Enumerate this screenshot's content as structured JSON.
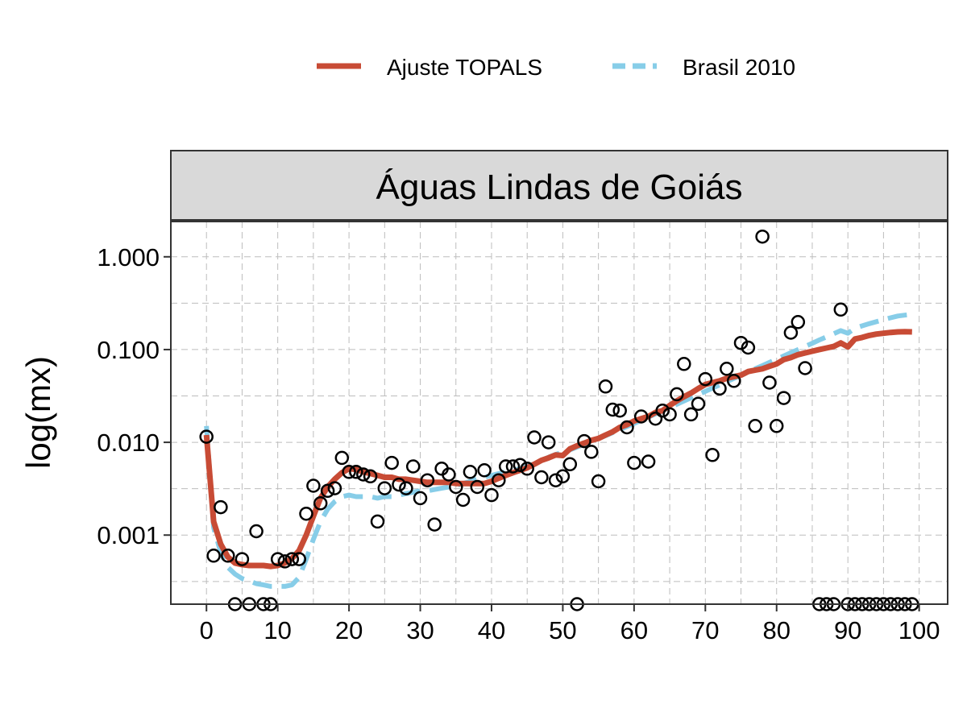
{
  "colors": {
    "fit": "#C84B35",
    "brazil": "#87CDE8",
    "points": "#000000",
    "strip_bg": "#D9D9D9",
    "panel_border": "#333333",
    "grid": "#BDBDBD"
  },
  "legend": {
    "position": "top",
    "items": [
      {
        "key": "fit",
        "label": "Ajuste TOPALS",
        "style": "solid"
      },
      {
        "key": "brazil",
        "label": "Brasil 2010",
        "style": "dashed"
      }
    ]
  },
  "chart_data": {
    "type": "line",
    "facet_title": "Águas Lindas de Goiás",
    "xlabel": "",
    "ylabel": "log(mx)",
    "y_scale": "log10",
    "xlim": [
      -5,
      104
    ],
    "ylim": [
      0.00018,
      2.4
    ],
    "grid": true,
    "x_ticks": [
      0,
      10,
      20,
      30,
      40,
      50,
      60,
      70,
      80,
      90,
      100
    ],
    "x_tick_labels": [
      "0",
      "10",
      "20",
      "30",
      "40",
      "50",
      "60",
      "70",
      "80",
      "90",
      "100"
    ],
    "y_ticks": [
      0.001,
      0.01,
      0.1,
      1
    ],
    "y_tick_labels": [
      "0.001",
      "0.010",
      "0.100",
      "1.000"
    ],
    "series": [
      {
        "name": "Ajuste TOPALS",
        "kind": "line",
        "x": [
          0,
          1,
          2,
          3,
          4,
          5,
          6,
          7,
          8,
          9,
          10,
          11,
          12,
          13,
          14,
          15,
          16,
          17,
          18,
          19,
          20,
          21,
          22,
          23,
          24,
          25,
          26,
          27,
          28,
          29,
          30,
          31,
          32,
          33,
          34,
          35,
          36,
          37,
          38,
          39,
          40,
          41,
          42,
          43,
          44,
          45,
          46,
          47,
          48,
          49,
          50,
          51,
          52,
          53,
          54,
          55,
          56,
          57,
          58,
          59,
          60,
          61,
          62,
          63,
          64,
          65,
          66,
          67,
          68,
          69,
          70,
          71,
          72,
          73,
          74,
          75,
          76,
          77,
          78,
          79,
          80,
          81,
          82,
          83,
          84,
          85,
          86,
          87,
          88,
          89,
          90,
          91,
          92,
          93,
          94,
          95,
          96,
          97,
          98,
          99
        ],
        "y": [
          0.012,
          0.0014,
          0.0008,
          0.00058,
          0.0005,
          0.00048,
          0.00047,
          0.00047,
          0.00047,
          0.00046,
          0.00047,
          0.0005,
          0.00056,
          0.00068,
          0.001,
          0.0016,
          0.0025,
          0.0033,
          0.004,
          0.0047,
          0.0052,
          0.0051,
          0.0048,
          0.0046,
          0.0044,
          0.0042,
          0.0042,
          0.004,
          0.004,
          0.0039,
          0.0038,
          0.0037,
          0.0037,
          0.0037,
          0.0037,
          0.0036,
          0.0036,
          0.0036,
          0.0036,
          0.0036,
          0.0038,
          0.0041,
          0.0044,
          0.0047,
          0.005,
          0.0053,
          0.0058,
          0.0064,
          0.0068,
          0.0073,
          0.0072,
          0.0085,
          0.0092,
          0.0098,
          0.0105,
          0.011,
          0.012,
          0.013,
          0.0145,
          0.0155,
          0.017,
          0.018,
          0.019,
          0.021,
          0.022,
          0.025,
          0.028,
          0.031,
          0.034,
          0.038,
          0.042,
          0.044,
          0.046,
          0.049,
          0.051,
          0.053,
          0.058,
          0.06,
          0.062,
          0.066,
          0.07,
          0.078,
          0.082,
          0.088,
          0.092,
          0.096,
          0.1,
          0.104,
          0.108,
          0.118,
          0.107,
          0.13,
          0.135,
          0.142,
          0.147,
          0.15,
          0.153,
          0.155,
          0.156,
          0.155
        ]
      },
      {
        "name": "Brasil 2010",
        "kind": "line",
        "x": [
          0,
          1,
          2,
          3,
          4,
          5,
          6,
          7,
          8,
          9,
          10,
          11,
          12,
          13,
          14,
          15,
          16,
          17,
          18,
          19,
          20,
          21,
          22,
          23,
          24,
          25,
          26,
          27,
          28,
          29,
          30,
          31,
          32,
          33,
          34,
          35,
          36,
          37,
          38,
          39,
          40,
          41,
          42,
          43,
          44,
          45,
          46,
          47,
          48,
          49,
          50,
          51,
          52,
          53,
          54,
          55,
          56,
          57,
          58,
          59,
          60,
          61,
          62,
          63,
          64,
          65,
          66,
          67,
          68,
          69,
          70,
          71,
          72,
          73,
          74,
          75,
          76,
          77,
          78,
          79,
          80,
          81,
          82,
          83,
          84,
          85,
          86,
          87,
          88,
          89,
          90,
          91,
          92,
          93,
          94,
          95,
          96,
          97,
          98,
          99
        ],
        "y": [
          0.015,
          0.0012,
          0.00065,
          0.00045,
          0.00038,
          0.00034,
          0.00032,
          0.0003,
          0.00029,
          0.00028,
          0.00028,
          0.00028,
          0.00029,
          0.00035,
          0.00055,
          0.0009,
          0.0014,
          0.0019,
          0.0023,
          0.0026,
          0.0027,
          0.0026,
          0.0026,
          0.0026,
          0.0025,
          0.0026,
          0.0026,
          0.0027,
          0.0028,
          0.0029,
          0.003,
          0.003,
          0.0031,
          0.0032,
          0.0033,
          0.0034,
          0.0036,
          0.0038,
          0.004,
          0.0042,
          0.0044,
          0.0046,
          0.0048,
          0.005,
          0.0052,
          0.0055,
          0.0059,
          0.0064,
          0.0069,
          0.0074,
          0.0078,
          0.0083,
          0.0089,
          0.0095,
          0.0102,
          0.011,
          0.0118,
          0.0127,
          0.0137,
          0.0148,
          0.016,
          0.0173,
          0.0187,
          0.0202,
          0.0219,
          0.0237,
          0.0257,
          0.0279,
          0.0302,
          0.0327,
          0.0354,
          0.0384,
          0.0416,
          0.045,
          0.0488,
          0.0528,
          0.0572,
          0.062,
          0.0671,
          0.0727,
          0.0787,
          0.0852,
          0.0923,
          0.0999,
          0.108,
          0.117,
          0.127,
          0.137,
          0.148,
          0.16,
          0.15,
          0.17,
          0.18,
          0.19,
          0.2,
          0.21,
          0.22,
          0.23,
          0.235,
          0.24
        ]
      },
      {
        "name": "",
        "kind": "points",
        "x": [
          0,
          1,
          2,
          3,
          4,
          5,
          6,
          7,
          8,
          9,
          10,
          11,
          12,
          13,
          14,
          15,
          16,
          17,
          18,
          19,
          20,
          21,
          22,
          23,
          24,
          25,
          26,
          27,
          28,
          29,
          30,
          31,
          32,
          33,
          34,
          35,
          36,
          37,
          38,
          39,
          40,
          41,
          42,
          43,
          44,
          45,
          46,
          47,
          48,
          49,
          50,
          51,
          52,
          53,
          54,
          55,
          56,
          57,
          58,
          59,
          60,
          61,
          62,
          63,
          64,
          65,
          66,
          67,
          68,
          69,
          70,
          71,
          72,
          73,
          74,
          75,
          76,
          77,
          78,
          79,
          80,
          81,
          82,
          83,
          84,
          86,
          87,
          88,
          89,
          90,
          91,
          92,
          93,
          94,
          95,
          96,
          97,
          98,
          99
        ],
        "y": [
          0.0115,
          0.0006,
          0.002,
          0.0006,
          0.00018,
          0.00055,
          0.00018,
          0.0011,
          0.00018,
          0.00018,
          0.00055,
          0.00052,
          0.00055,
          0.00055,
          0.0017,
          0.0034,
          0.0022,
          0.003,
          0.0032,
          0.0068,
          0.0048,
          0.0048,
          0.0045,
          0.0043,
          0.0014,
          0.0032,
          0.006,
          0.0035,
          0.0032,
          0.0055,
          0.0025,
          0.0039,
          0.0013,
          0.0052,
          0.0045,
          0.0033,
          0.0024,
          0.0048,
          0.0033,
          0.005,
          0.0027,
          0.0039,
          0.0055,
          0.0055,
          0.0057,
          0.0052,
          0.0113,
          0.0042,
          0.01,
          0.0039,
          0.0043,
          0.0058,
          0.00018,
          0.0103,
          0.0079,
          0.0038,
          0.04,
          0.0225,
          0.022,
          0.0145,
          0.006,
          0.019,
          0.0062,
          0.018,
          0.022,
          0.02,
          0.033,
          0.07,
          0.02,
          0.026,
          0.048,
          0.0073,
          0.038,
          0.062,
          0.046,
          0.118,
          0.105,
          0.015,
          1.65,
          0.044,
          0.015,
          0.03,
          0.152,
          0.198,
          0.063,
          0.00018,
          0.00018,
          0.00018,
          0.27,
          0.00018,
          0.00018,
          0.00018,
          0.00018,
          0.00018,
          0.00018,
          0.00018,
          0.00018,
          0.00018,
          0.00018
        ]
      }
    ]
  }
}
